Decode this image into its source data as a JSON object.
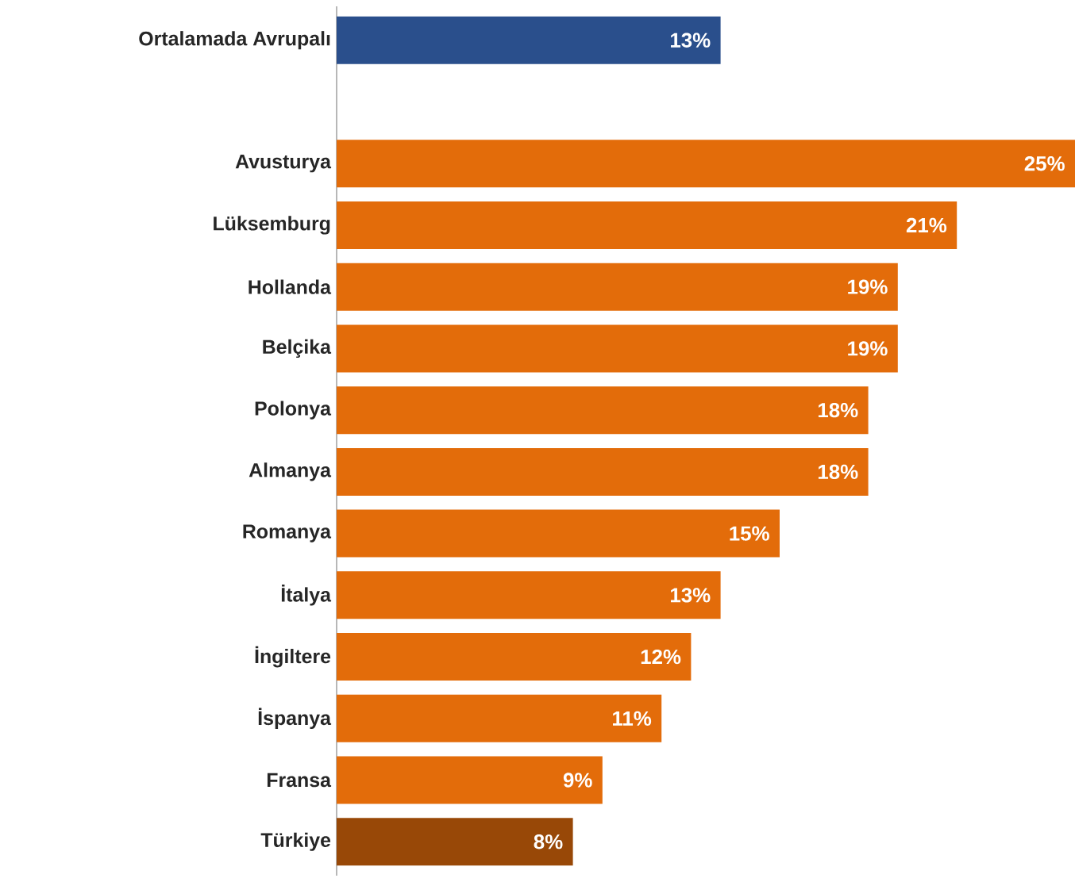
{
  "chart_data": {
    "type": "bar",
    "orientation": "horizontal",
    "categories": [
      "Ortalamada Avrupalı",
      null,
      "Avusturya",
      "Lüksemburg",
      "Hollanda",
      "Belçika",
      "Polonya",
      "Almanya",
      "Romanya",
      "İtalya",
      "İngiltere",
      "İspanya",
      "Fransa",
      "Türkiye"
    ],
    "values": [
      13,
      null,
      25,
      21,
      19,
      19,
      18,
      18,
      15,
      13,
      12,
      11,
      9,
      8
    ],
    "value_labels": [
      "13%",
      null,
      "25%",
      "21%",
      "19%",
      "19%",
      "18%",
      "18%",
      "15%",
      "13%",
      "12%",
      "11%",
      "9%",
      "8%"
    ],
    "colors": [
      "#2a4f8c",
      null,
      "#e36c0a",
      "#e36c0a",
      "#e36c0a",
      "#e36c0a",
      "#e36c0a",
      "#e36c0a",
      "#e36c0a",
      "#e36c0a",
      "#e36c0a",
      "#e36c0a",
      "#e36c0a",
      "#984807"
    ],
    "stacked": false
  }
}
